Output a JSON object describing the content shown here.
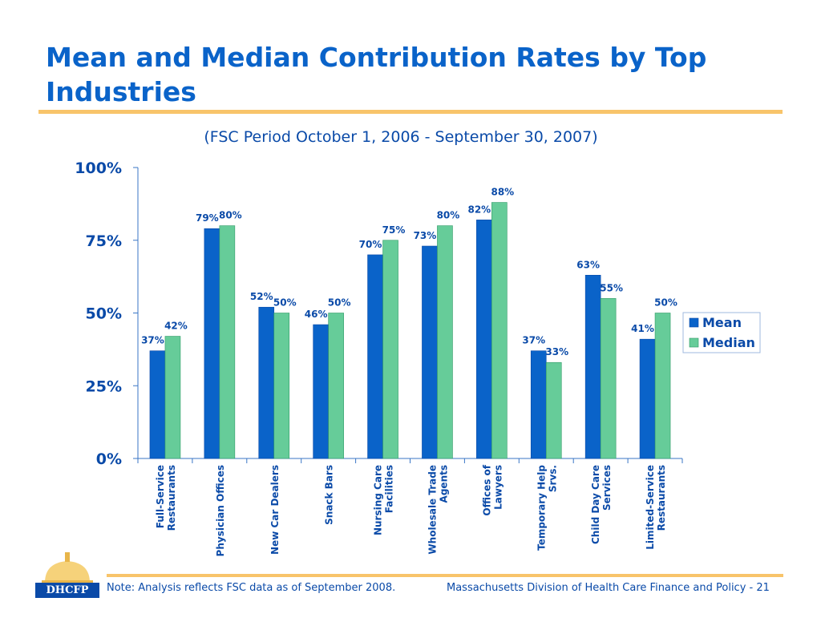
{
  "page": {
    "title": "Mean and Median Contribution Rates by Top Industries",
    "subtitle": "(FSC Period October 1, 2006 - September 30, 2007)",
    "footer_note": "Note: Analysis reflects FSC data as of September 2008.",
    "footer_right": "Massachusetts Division of Health Care Finance and Policy - 21",
    "logo_text": "DHCFP",
    "colors": {
      "title": "#0a63c9",
      "accent_rule": "#f8c46a",
      "text": "#0a4aa8"
    }
  },
  "chart_data": {
    "type": "bar",
    "categories": [
      [
        "Full-Service",
        "Restaurants"
      ],
      [
        "Physician Offices"
      ],
      [
        "New Car Dealers"
      ],
      [
        "Snack Bars"
      ],
      [
        "Nursing Care",
        "Facilities"
      ],
      [
        "Wholesale Trade",
        "Agents"
      ],
      [
        "Offices of",
        "Lawyers"
      ],
      [
        "Temporary Help",
        "Srvs."
      ],
      [
        "Child Day Care",
        "Services"
      ],
      [
        "Limited-Service",
        "Restaurants"
      ]
    ],
    "series": [
      {
        "name": "Mean",
        "color": "#0a63c9",
        "values": [
          37,
          79,
          52,
          46,
          70,
          73,
          82,
          37,
          63,
          41
        ]
      },
      {
        "name": "Median",
        "color": "#66cc99",
        "values": [
          42,
          80,
          50,
          50,
          75,
          80,
          88,
          33,
          55,
          50
        ]
      }
    ],
    "ylim": [
      0,
      100
    ],
    "yticks": [
      0,
      25,
      50,
      75,
      100
    ],
    "ytick_labels": [
      "0%",
      "25%",
      "50%",
      "75%",
      "100%"
    ],
    "value_suffix": "%",
    "legend": "right",
    "grid": false
  }
}
